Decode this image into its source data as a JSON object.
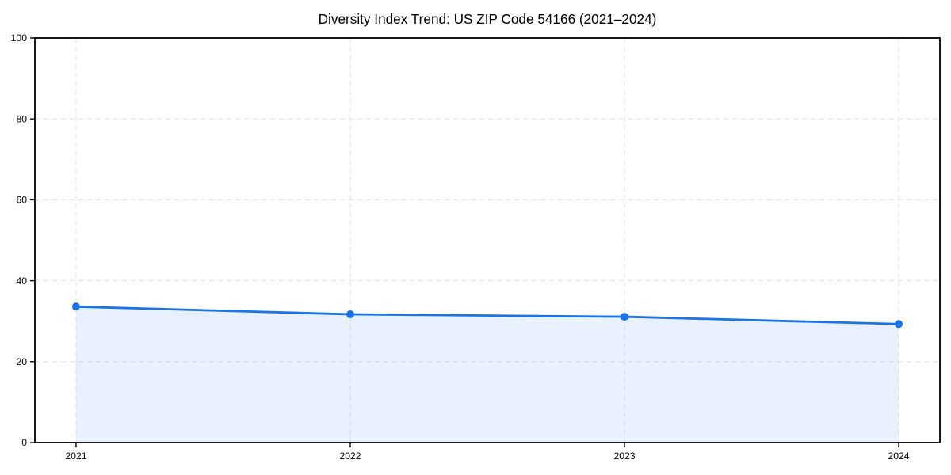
{
  "chart_data": {
    "type": "area",
    "title": "Diversity Index Trend: US ZIP Code 54166 (2021–2024)",
    "x": [
      "2021",
      "2022",
      "2023",
      "2024"
    ],
    "series": [
      {
        "name": "Diversity Index",
        "values": [
          33.6,
          31.7,
          31.1,
          29.3
        ]
      }
    ],
    "xlabel": "",
    "ylabel": "",
    "ylim": [
      0,
      100
    ],
    "yticks": [
      0,
      20,
      40,
      60,
      80,
      100
    ],
    "xticks": [
      "2021",
      "2022",
      "2023",
      "2024"
    ],
    "grid": "dashed both axes",
    "legend": "none",
    "marker": "circle",
    "colors": {
      "line": "#1a73e8",
      "marker": "#1a73e8",
      "area_fill": "rgba(26,115,232,0.10)",
      "grid": "#e2e2e2",
      "axis": "#000000",
      "text": "#000000",
      "background": "#ffffff"
    }
  }
}
